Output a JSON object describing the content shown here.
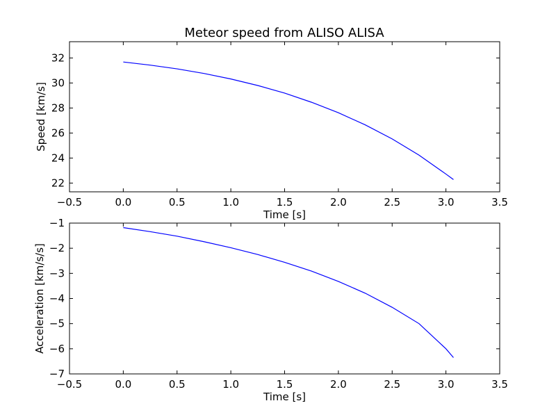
{
  "figure": {
    "title": "Meteor speed from  ALISO ALISA",
    "line_color": "#0000ff",
    "background": "#ffffff"
  },
  "chart_data": [
    {
      "type": "line",
      "title": "Meteor speed from  ALISO ALISA",
      "xlabel": "Time [s]",
      "ylabel": "Speed [km/s]",
      "xlim": [
        -0.5,
        3.5
      ],
      "ylim": [
        21.3,
        33.3
      ],
      "xticks": [
        -0.5,
        0.0,
        0.5,
        1.0,
        1.5,
        2.0,
        2.5,
        3.0,
        3.5
      ],
      "xtick_labels": [
        "−0.5",
        "0.0",
        "0.5",
        "1.0",
        "1.5",
        "2.0",
        "2.5",
        "3.0",
        "3.5"
      ],
      "yticks": [
        22,
        24,
        26,
        28,
        30,
        32
      ],
      "ytick_labels": [
        "22",
        "24",
        "26",
        "28",
        "30",
        "32"
      ],
      "grid": false,
      "series": [
        {
          "color": "#0000ff",
          "x": [
            0.0,
            0.25,
            0.5,
            0.75,
            1.0,
            1.25,
            1.5,
            1.75,
            2.0,
            2.25,
            2.5,
            2.75,
            3.0,
            3.07
          ],
          "y": [
            31.68,
            31.43,
            31.13,
            30.76,
            30.32,
            29.8,
            29.19,
            28.46,
            27.62,
            26.65,
            25.53,
            24.23,
            22.72,
            22.28
          ]
        }
      ]
    },
    {
      "type": "line",
      "title": "",
      "xlabel": "Time [s]",
      "ylabel": "Acceleration [km/s/s]",
      "xlim": [
        -0.5,
        3.5
      ],
      "ylim": [
        -7,
        -1
      ],
      "xticks": [
        -0.5,
        0.0,
        0.5,
        1.0,
        1.5,
        2.0,
        2.5,
        3.0,
        3.5
      ],
      "xtick_labels": [
        "−0.5",
        "0.0",
        "0.5",
        "1.0",
        "1.5",
        "2.0",
        "2.5",
        "3.0",
        "3.5"
      ],
      "yticks": [
        -7,
        -6,
        -5,
        -4,
        -3,
        -2,
        -1
      ],
      "ytick_labels": [
        "−7",
        "−6",
        "−5",
        "−4",
        "−3",
        "−2",
        "−1"
      ],
      "grid": false,
      "series": [
        {
          "color": "#0000ff",
          "x": [
            0.0,
            0.25,
            0.5,
            0.75,
            1.0,
            1.25,
            1.5,
            1.75,
            2.0,
            2.25,
            2.5,
            2.75,
            3.0,
            3.07
          ],
          "y": [
            -1.18,
            -1.34,
            -1.52,
            -1.74,
            -1.98,
            -2.25,
            -2.56,
            -2.91,
            -3.32,
            -3.79,
            -4.35,
            -5.0,
            -6.0,
            -6.35
          ]
        }
      ]
    }
  ]
}
